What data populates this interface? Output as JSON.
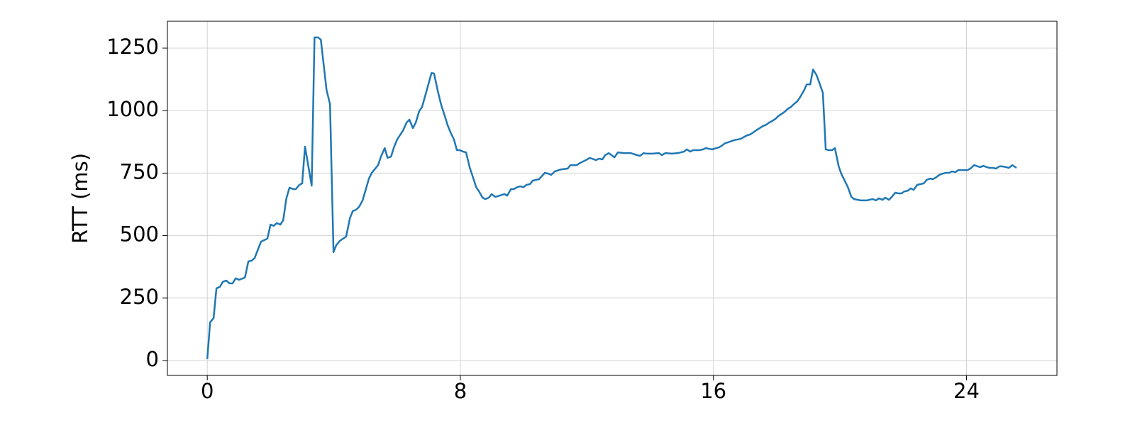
{
  "chart_data": {
    "type": "line",
    "ylabel": "RTT (ms)",
    "color": "#1f77b4",
    "grid": true,
    "xlim": [
      -1.26,
      26.86
    ],
    "ylim": [
      -59.5,
      1357.7
    ],
    "xticks": [
      0,
      8,
      16,
      24
    ],
    "yticks": [
      0,
      250,
      500,
      750,
      1000,
      1250
    ],
    "x": [
      0,
      0.09,
      0.2,
      0.29,
      0.4,
      0.49,
      0.6,
      0.7,
      0.8,
      0.9,
      1.0,
      1.19,
      1.3,
      1.41,
      1.5,
      1.7,
      1.9,
      2.0,
      2.1,
      2.2,
      2.31,
      2.4,
      2.5,
      2.6,
      2.71,
      2.8,
      2.91,
      3.0,
      3.09,
      3.3,
      3.39,
      3.5,
      3.59,
      3.77,
      3.88,
      3.99,
      4.08,
      4.19,
      4.39,
      4.51,
      4.6,
      4.71,
      4.8,
      4.91,
      5.0,
      5.11,
      5.2,
      5.4,
      5.49,
      5.61,
      5.7,
      5.81,
      5.9,
      6.0,
      6.19,
      6.3,
      6.39,
      6.5,
      6.59,
      6.7,
      6.79,
      6.91,
      7.09,
      7.17,
      7.29,
      7.4,
      7.49,
      7.6,
      7.69,
      7.8,
      7.89,
      7.98,
      8.09,
      8.18,
      8.3,
      8.39,
      8.5,
      8.59,
      8.7,
      8.79,
      8.9,
      8.99,
      9.1,
      9.19,
      9.39,
      9.48,
      9.6,
      9.69,
      9.8,
      9.89,
      10.0,
      10.09,
      10.2,
      10.29,
      10.49,
      10.67,
      10.78,
      10.87,
      10.99,
      11.19,
      11.39,
      11.48,
      11.68,
      11.79,
      11.97,
      12.09,
      12.29,
      12.38,
      12.49,
      12.58,
      12.69,
      12.78,
      12.87,
      12.98,
      13.18,
      13.39,
      13.59,
      13.68,
      13.79,
      13.88,
      14.08,
      14.28,
      14.37,
      14.48,
      14.69,
      14.87,
      15.07,
      15.16,
      15.27,
      15.36,
      15.56,
      15.67,
      15.76,
      15.87,
      15.96,
      16.17,
      16.26,
      16.37,
      16.46,
      16.66,
      16.86,
      17.06,
      17.15,
      17.26,
      17.35,
      17.56,
      17.67,
      17.76,
      17.85,
      17.96,
      18.05,
      18.25,
      18.34,
      18.45,
      18.57,
      18.65,
      18.74,
      18.86,
      18.95,
      19.06,
      19.15,
      19.26,
      19.35,
      19.46,
      19.55,
      19.64,
      19.75,
      19.84,
      19.96,
      20.04,
      20.16,
      20.25,
      20.36,
      20.45,
      20.65,
      20.85,
      21.03,
      21.14,
      21.23,
      21.35,
      21.43,
      21.55,
      21.64,
      21.75,
      21.84,
      21.95,
      22.04,
      22.15,
      22.24,
      22.33,
      22.44,
      22.65,
      22.74,
      22.85,
      22.94,
      23.05,
      23.14,
      23.25,
      23.34,
      23.45,
      23.54,
      23.65,
      23.74,
      23.95,
      24.04,
      24.15,
      24.24,
      24.35,
      24.44,
      24.53,
      24.64,
      24.73,
      24.84,
      24.93,
      25.04,
      25.13,
      25.25,
      25.34,
      25.45,
      25.58
    ],
    "values": [
      6,
      153,
      170,
      289,
      295,
      315,
      320,
      309,
      309,
      329,
      323,
      332,
      397,
      400,
      411,
      476,
      488,
      544,
      539,
      550,
      544,
      561,
      649,
      692,
      686,
      686,
      703,
      709,
      856,
      700,
      1293,
      1293,
      1284,
      1083,
      1026,
      434,
      462,
      479,
      496,
      570,
      598,
      604,
      615,
      641,
      680,
      728,
      751,
      782,
      816,
      850,
      811,
      816,
      853,
      884,
      921,
      952,
      964,
      930,
      952,
      998,
      1015,
      1069,
      1151,
      1148,
      1077,
      1020,
      986,
      941,
      913,
      884,
      842,
      842,
      836,
      833,
      771,
      737,
      694,
      677,
      652,
      646,
      652,
      666,
      655,
      658,
      666,
      660,
      686,
      686,
      694,
      697,
      694,
      703,
      706,
      720,
      726,
      751,
      748,
      743,
      757,
      765,
      768,
      782,
      782,
      791,
      802,
      811,
      802,
      808,
      805,
      822,
      830,
      822,
      813,
      833,
      830,
      830,
      822,
      819,
      830,
      828,
      828,
      830,
      822,
      830,
      828,
      830,
      836,
      845,
      836,
      842,
      842,
      845,
      850,
      847,
      845,
      853,
      859,
      870,
      873,
      882,
      887,
      901,
      904,
      913,
      921,
      938,
      944,
      952,
      958,
      967,
      978,
      995,
      1006,
      1015,
      1029,
      1037,
      1054,
      1080,
      1105,
      1105,
      1165,
      1142,
      1111,
      1071,
      845,
      842,
      842,
      850,
      777,
      748,
      717,
      694,
      655,
      646,
      641,
      641,
      646,
      641,
      649,
      643,
      652,
      643,
      655,
      672,
      669,
      669,
      677,
      680,
      689,
      683,
      703,
      709,
      723,
      728,
      726,
      734,
      743,
      748,
      751,
      751,
      757,
      754,
      762,
      762,
      762,
      771,
      782,
      777,
      774,
      779,
      774,
      771,
      771,
      768,
      777,
      777,
      774,
      771,
      782,
      771
    ]
  }
}
